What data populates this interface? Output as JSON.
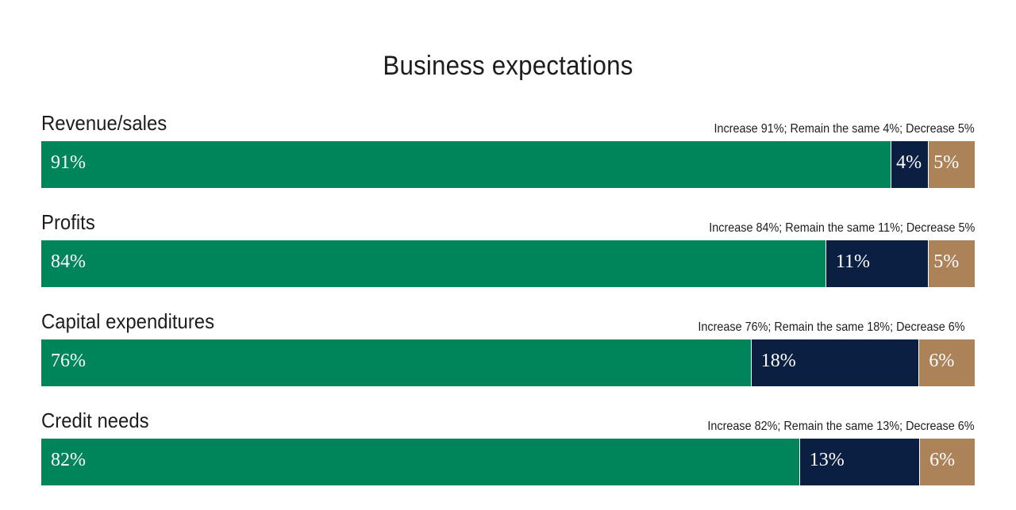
{
  "chart_data": {
    "type": "bar",
    "orientation": "horizontal",
    "stacked": true,
    "title": "Business expectations",
    "categories": [
      "Revenue/sales",
      "Profits",
      "Capital expenditures",
      "Credit needs"
    ],
    "series": [
      {
        "name": "Increase",
        "color": "#00845a",
        "values": [
          91,
          84,
          76,
          82
        ]
      },
      {
        "name": "Remain the same",
        "color": "#0b1f43",
        "values": [
          4,
          11,
          18,
          13
        ]
      },
      {
        "name": "Decrease",
        "color": "#ac8258",
        "values": [
          5,
          5,
          6,
          6
        ]
      }
    ],
    "summaries": [
      "Increase 91%; Remain the same 4%; Decrease 5%",
      "Increase 84%; Remain the same 11%; Decrease 5%",
      "Increase 76%; Remain the same 18%; Decrease 6%",
      "Increase 82%; Remain the same 13%; Decrease 6%"
    ],
    "value_suffix": "%",
    "xlim": [
      0,
      100
    ],
    "grid": false,
    "legend": "none"
  }
}
